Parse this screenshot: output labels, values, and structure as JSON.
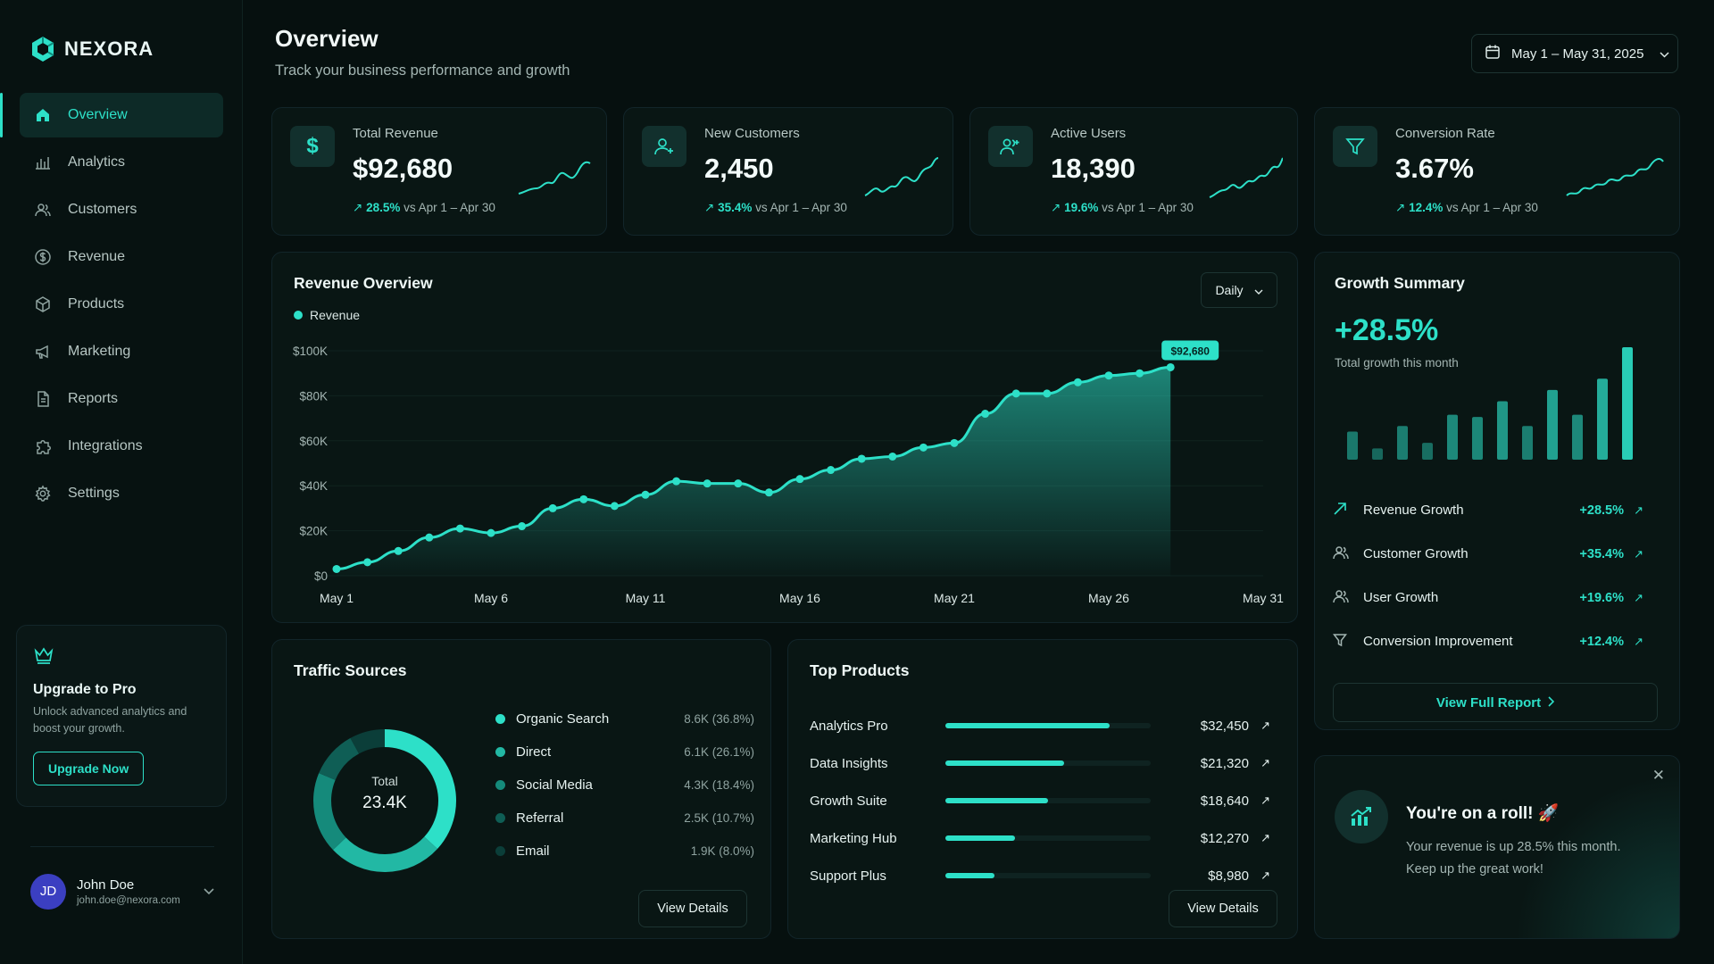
{
  "brand": {
    "name": "NEXORA"
  },
  "sidebar": {
    "items": [
      {
        "label": "Overview",
        "icon": "home-icon",
        "active": true
      },
      {
        "label": "Analytics",
        "icon": "bar-chart-icon"
      },
      {
        "label": "Customers",
        "icon": "users-icon"
      },
      {
        "label": "Revenue",
        "icon": "dollar-circle-icon"
      },
      {
        "label": "Products",
        "icon": "box-icon"
      },
      {
        "label": "Marketing",
        "icon": "megaphone-icon"
      },
      {
        "label": "Reports",
        "icon": "document-icon"
      },
      {
        "label": "Integrations",
        "icon": "puzzle-icon"
      },
      {
        "label": "Settings",
        "icon": "gear-icon"
      }
    ],
    "upgrade": {
      "title": "Upgrade to Pro",
      "text": "Unlock advanced analytics and boost your growth.",
      "button": "Upgrade Now"
    },
    "user": {
      "initials": "JD",
      "name": "John Doe",
      "email": "john.doe@nexora.com"
    }
  },
  "header": {
    "title": "Overview",
    "subtitle": "Track your business performance and growth",
    "date_range": "May 1 – May 31, 2025"
  },
  "kpis": [
    {
      "label": "Total Revenue",
      "value": "$92,680",
      "change": "28.5%",
      "compare": "vs Apr 1 – Apr 30",
      "icon": "dollar-icon"
    },
    {
      "label": "New Customers",
      "value": "2,450",
      "change": "35.4%",
      "compare": "vs Apr 1 – Apr 30",
      "icon": "user-plus-icon"
    },
    {
      "label": "Active Users",
      "value": "18,390",
      "change": "19.6%",
      "compare": "vs Apr 1 – Apr 30",
      "icon": "users-check-icon"
    },
    {
      "label": "Conversion Rate",
      "value": "3.67%",
      "change": "12.4%",
      "compare": "vs Apr 1 – Apr 30",
      "icon": "funnel-icon"
    }
  ],
  "revenue_overview": {
    "title": "Revenue Overview",
    "period": "Daily",
    "legend": "Revenue",
    "last_label": "$92,680"
  },
  "chart_data": {
    "type": "area",
    "title": "Revenue Overview",
    "series": [
      {
        "name": "Revenue",
        "values": [
          3000,
          6000,
          11000,
          17000,
          21000,
          19000,
          22000,
          30000,
          34000,
          31000,
          36000,
          42000,
          41000,
          41000,
          37000,
          43000,
          47000,
          52000,
          53000,
          57000,
          59000,
          72000,
          81000,
          81000,
          86000,
          89000,
          90000,
          92680
        ]
      }
    ],
    "x": [
      1,
      2,
      3,
      4,
      5,
      6,
      7,
      8,
      9,
      10,
      11,
      12,
      13,
      14,
      15,
      16,
      17,
      18,
      19,
      20,
      21,
      22,
      23,
      24,
      25,
      26,
      27,
      28
    ],
    "x_tick_values": [
      1,
      6,
      11,
      16,
      21,
      26,
      31
    ],
    "xticks": [
      "May 1",
      "May 6",
      "May 11",
      "May 16",
      "May 21",
      "May 26",
      "May 31"
    ],
    "yticks": [
      "$0",
      "$20K",
      "$40K",
      "$60K",
      "$80K",
      "$100K"
    ],
    "ylim": [
      0,
      100000
    ],
    "grid": true,
    "legend": "top-left"
  },
  "growth_summary": {
    "title": "Growth Summary",
    "total": "+28.5%",
    "total_label": "Total growth this month",
    "bars": [
      0.25,
      0.1,
      0.3,
      0.15,
      0.4,
      0.38,
      0.52,
      0.3,
      0.62,
      0.4,
      0.72,
      1.0
    ],
    "rows": [
      {
        "label": "Revenue Growth",
        "value": "+28.5%",
        "icon": "trend-up-icon"
      },
      {
        "label": "Customer Growth",
        "value": "+35.4%",
        "icon": "users-icon"
      },
      {
        "label": "User Growth",
        "value": "+19.6%",
        "icon": "users-icon"
      },
      {
        "label": "Conversion Improvement",
        "value": "+12.4%",
        "icon": "funnel-icon"
      }
    ],
    "button": "View Full Report"
  },
  "traffic_sources": {
    "title": "Traffic Sources",
    "center_label": "Total",
    "center_value": "23.4K",
    "items": [
      {
        "label": "Organic Search",
        "amount": "8.6K (36.8%)",
        "share": 36.8,
        "color": "#2de0c8"
      },
      {
        "label": "Direct",
        "amount": "6.1K (26.1%)",
        "share": 26.1,
        "color": "#22b8a4"
      },
      {
        "label": "Social Media",
        "amount": "4.3K (18.4%)",
        "share": 18.4,
        "color": "#158a7b"
      },
      {
        "label": "Referral",
        "amount": "2.5K (10.7%)",
        "share": 10.7,
        "color": "#0f5e55"
      },
      {
        "label": "Email",
        "amount": "1.9K (8.0%)",
        "share": 8.0,
        "color": "#0b3e39"
      }
    ],
    "button": "View Details"
  },
  "top_products": {
    "title": "Top Products",
    "items": [
      {
        "name": "Analytics Pro",
        "value": "$32,450",
        "share": 0.8
      },
      {
        "name": "Data Insights",
        "value": "$21,320",
        "share": 0.58
      },
      {
        "name": "Growth Suite",
        "value": "$18,640",
        "share": 0.5
      },
      {
        "name": "Marketing Hub",
        "value": "$12,270",
        "share": 0.34
      },
      {
        "name": "Support Plus",
        "value": "$8,980",
        "share": 0.24
      }
    ],
    "button": "View Details"
  },
  "toast": {
    "title": "You're on a roll! 🚀",
    "text": "Your revenue is up 28.5% this month. Keep up the great work!"
  }
}
